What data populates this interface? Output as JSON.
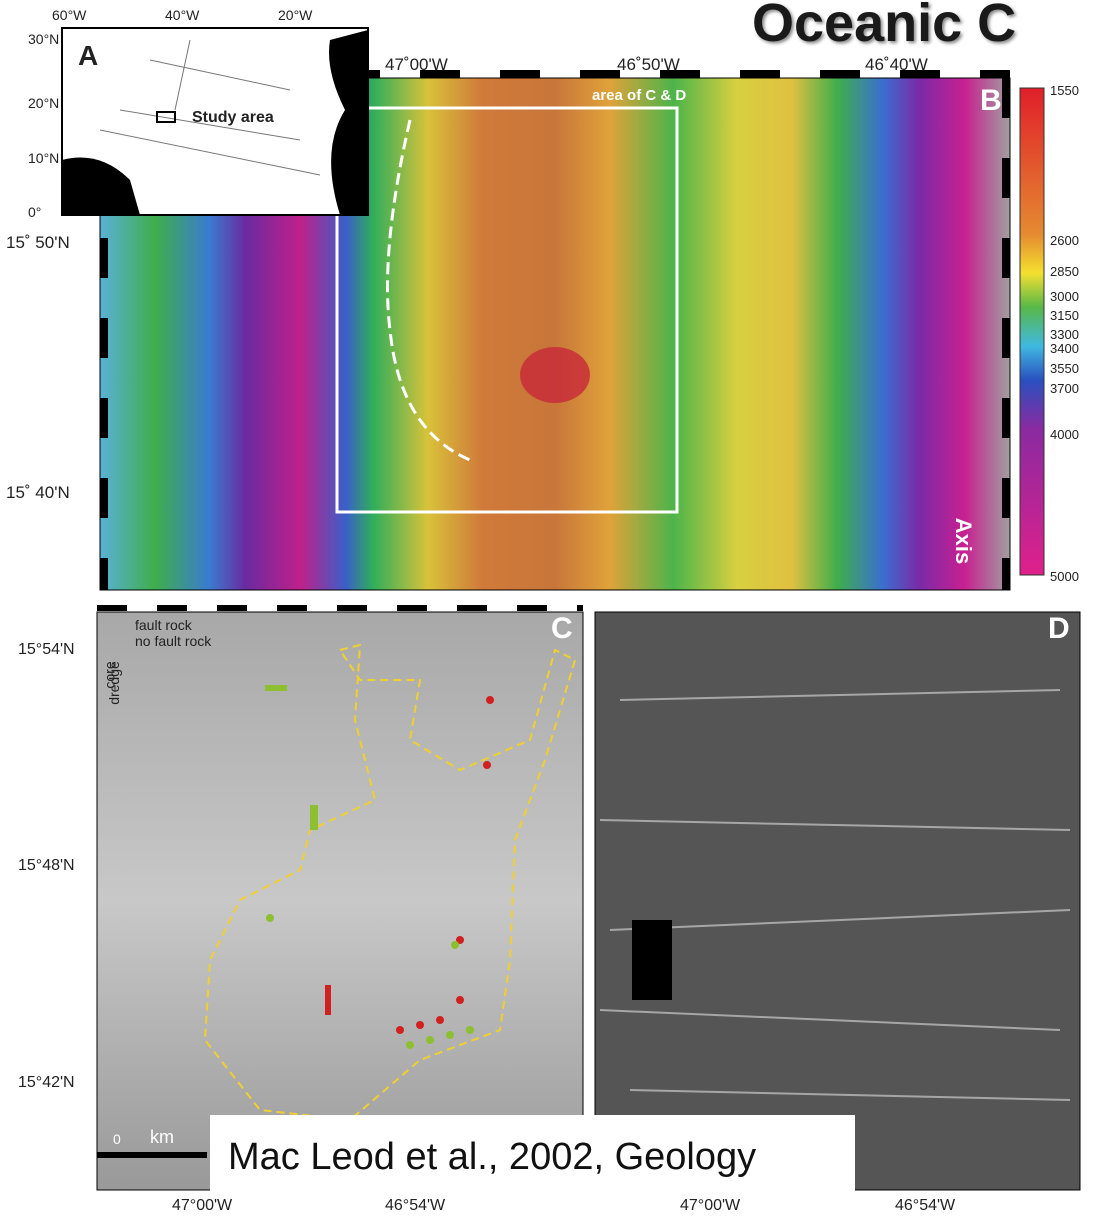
{
  "title": "Oceanic C",
  "panel_a": {
    "label": "A",
    "lon_labels": [
      "60°W",
      "40°W",
      "20°W"
    ],
    "lat_labels": [
      "30°N",
      "20°N",
      "10°N",
      "0°"
    ],
    "annotation": "Study area"
  },
  "panel_b": {
    "label": "B",
    "lon_labels": [
      "47˚00'W",
      "46˚50'W",
      "46˚40'W"
    ],
    "lat_labels": [
      "15˚ 50'N",
      "15˚ 40'N"
    ],
    "box_label": "area of C & D",
    "axis_label": "Axis",
    "colorbar": [
      1550,
      2600,
      2850,
      3000,
      3150,
      3300,
      3400,
      3550,
      3700,
      4000,
      5000
    ]
  },
  "panel_c": {
    "label": "C",
    "legend": {
      "fault": "fault rock",
      "no_fault": "no fault rock",
      "core": "core",
      "dredge": "dredge"
    },
    "lat_labels": [
      "15°54'N",
      "15°48'N",
      "15°42'N"
    ],
    "lon_labels": [
      "47°00'W",
      "46°54'W"
    ],
    "scale_zero": "0",
    "scale_unit": "km"
  },
  "panel_d": {
    "label": "D",
    "lon_labels": [
      "47°00'W",
      "46°54'W"
    ]
  },
  "citation": "Mac Leod et al., 2002, Geology"
}
